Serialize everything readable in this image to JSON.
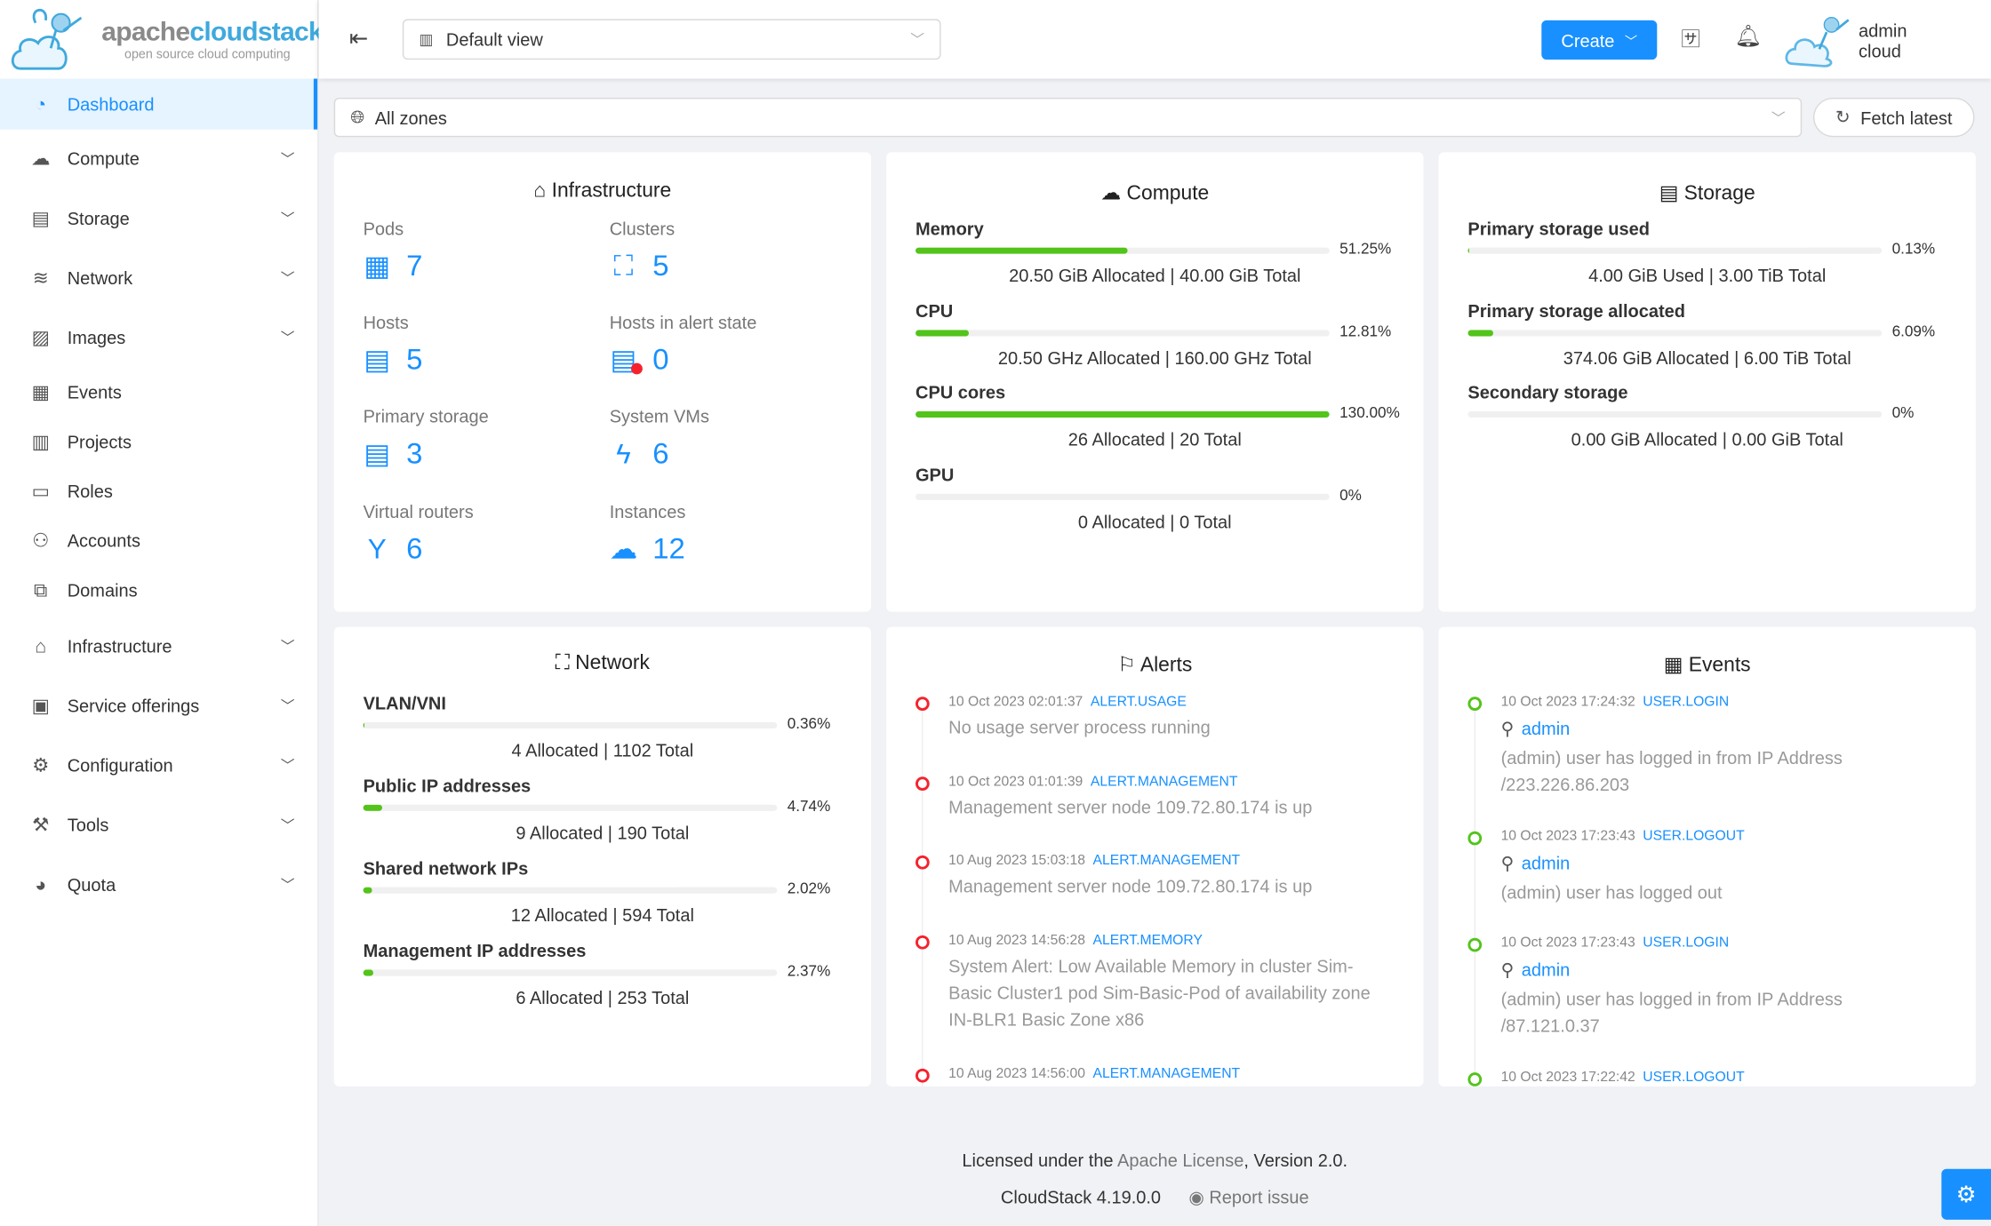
{
  "logo": {
    "text_a": "apache",
    "text_b": "cloudstack",
    "tagline": "open source cloud computing"
  },
  "sidebar": {
    "items": [
      {
        "label": "Dashboard",
        "icon": "dashboard-icon",
        "glyph": "◔",
        "active": true,
        "expandable": false
      },
      {
        "label": "Compute",
        "icon": "cloud-icon",
        "glyph": "☁",
        "expandable": true
      },
      {
        "label": "Storage",
        "icon": "database-icon",
        "glyph": "▤",
        "expandable": true
      },
      {
        "label": "Network",
        "icon": "wifi-icon",
        "glyph": "≋",
        "expandable": true
      },
      {
        "label": "Images",
        "icon": "picture-icon",
        "glyph": "▨",
        "expandable": true
      },
      {
        "label": "Events",
        "icon": "schedule-icon",
        "glyph": "▦",
        "expandable": false
      },
      {
        "label": "Projects",
        "icon": "project-icon",
        "glyph": "▥",
        "expandable": false
      },
      {
        "label": "Roles",
        "icon": "idcard-icon",
        "glyph": "▭",
        "expandable": false
      },
      {
        "label": "Accounts",
        "icon": "team-icon",
        "glyph": "⚇",
        "expandable": false
      },
      {
        "label": "Domains",
        "icon": "block-icon",
        "glyph": "⧉",
        "expandable": false
      },
      {
        "label": "Infrastructure",
        "icon": "bank-icon",
        "glyph": "⌂",
        "expandable": true
      },
      {
        "label": "Service offerings",
        "icon": "shopping-icon",
        "glyph": "▣",
        "expandable": true
      },
      {
        "label": "Configuration",
        "icon": "setting-icon",
        "glyph": "⚙",
        "expandable": true
      },
      {
        "label": "Tools",
        "icon": "tool-icon",
        "glyph": "⚒",
        "expandable": true
      },
      {
        "label": "Quota",
        "icon": "pie-chart-icon",
        "glyph": "◕",
        "expandable": true
      }
    ]
  },
  "header": {
    "view_select": "Default view",
    "create": "Create",
    "user": "admin cloud"
  },
  "toolbar": {
    "zone_select": "All zones",
    "fetch_latest": "Fetch latest"
  },
  "infrastructure": {
    "title": "Infrastructure",
    "stats": [
      {
        "label": "Pods",
        "value": "7",
        "icon": "appstore-icon",
        "glyph": "▦"
      },
      {
        "label": "Clusters",
        "value": "5",
        "icon": "cluster-icon",
        "glyph": "⛶"
      },
      {
        "label": "Hosts",
        "value": "5",
        "icon": "host-icon",
        "glyph": "▤"
      },
      {
        "label": "Hosts in alert state",
        "value": "0",
        "icon": "host-alert-icon",
        "glyph": "▤"
      },
      {
        "label": "Primary storage",
        "value": "3",
        "icon": "database-icon",
        "glyph": "▤"
      },
      {
        "label": "System VMs",
        "value": "6",
        "icon": "thunderbolt-icon",
        "glyph": "ϟ"
      },
      {
        "label": "Virtual routers",
        "value": "6",
        "icon": "fork-icon",
        "glyph": "Y"
      },
      {
        "label": "Instances",
        "value": "12",
        "icon": "cloud-server-icon",
        "glyph": "☁"
      }
    ]
  },
  "compute": {
    "title": "Compute",
    "metrics": [
      {
        "name": "Memory",
        "percent": 51.25,
        "percent_label": "51.25%",
        "detail": "20.50 GiB Allocated | 40.00 GiB Total"
      },
      {
        "name": "CPU",
        "percent": 12.81,
        "percent_label": "12.81%",
        "detail": "20.50 GHz Allocated | 160.00 GHz Total"
      },
      {
        "name": "CPU cores",
        "percent": 130,
        "percent_label": "130.00%",
        "detail": "26 Allocated | 20 Total"
      },
      {
        "name": "GPU",
        "percent": 0,
        "percent_label": "0%",
        "detail": "0 Allocated | 0 Total"
      }
    ]
  },
  "storage": {
    "title": "Storage",
    "metrics": [
      {
        "name": "Primary storage used",
        "percent": 0.13,
        "percent_label": "0.13%",
        "detail": "4.00 GiB Used | 3.00 TiB Total"
      },
      {
        "name": "Primary storage allocated",
        "percent": 6.09,
        "percent_label": "6.09%",
        "detail": "374.06 GiB Allocated | 6.00 TiB Total"
      },
      {
        "name": "Secondary storage",
        "percent": 0,
        "percent_label": "0%",
        "detail": "0.00 GiB Allocated | 0.00 GiB Total"
      }
    ]
  },
  "network": {
    "title": "Network",
    "metrics": [
      {
        "name": "VLAN/VNI",
        "percent": 0.36,
        "percent_label": "0.36%",
        "detail": "4 Allocated | 1102 Total"
      },
      {
        "name": "Public IP addresses",
        "percent": 4.74,
        "percent_label": "4.74%",
        "detail": "9 Allocated | 190 Total"
      },
      {
        "name": "Shared network IPs",
        "percent": 2.02,
        "percent_label": "2.02%",
        "detail": "12 Allocated | 594 Total"
      },
      {
        "name": "Management IP addresses",
        "percent": 2.37,
        "percent_label": "2.37%",
        "detail": "6 Allocated | 253 Total"
      }
    ]
  },
  "alerts": {
    "title": "Alerts",
    "items": [
      {
        "time": "10 Oct 2023 02:01:37",
        "type": "ALERT.USAGE",
        "desc": "No usage server process running"
      },
      {
        "time": "10 Oct 2023 01:01:39",
        "type": "ALERT.MANAGEMENT",
        "desc": "Management server node 109.72.80.174 is up"
      },
      {
        "time": "10 Aug 2023 15:03:18",
        "type": "ALERT.MANAGEMENT",
        "desc": "Management server node 109.72.80.174 is up"
      },
      {
        "time": "10 Aug 2023 14:56:28",
        "type": "ALERT.MEMORY",
        "desc": "System Alert: Low Available Memory in cluster Sim-Basic Cluster1 pod Sim-Basic-Pod of availability zone IN-BLR1 Basic Zone x86"
      },
      {
        "time": "10 Aug 2023 14:56:00",
        "type": "ALERT.MANAGEMENT",
        "desc": ""
      }
    ]
  },
  "events": {
    "title": "Events",
    "items": [
      {
        "time": "10 Oct 2023 17:24:32",
        "type": "USER.LOGIN",
        "user": "admin",
        "desc": "(admin) user has logged in from IP Address /223.226.86.203"
      },
      {
        "time": "10 Oct 2023 17:23:43",
        "type": "USER.LOGOUT",
        "user": "admin",
        "desc": "(admin) user has logged out"
      },
      {
        "time": "10 Oct 2023 17:23:43",
        "type": "USER.LOGIN",
        "user": "admin",
        "desc": "(admin) user has logged in from IP Address /87.121.0.37"
      },
      {
        "time": "10 Oct 2023 17:22:42",
        "type": "USER.LOGOUT",
        "user": "",
        "desc": ""
      }
    ]
  },
  "footer": {
    "license_pre": "Licensed under the ",
    "license_link": "Apache License",
    "license_post": ", Version 2.0.",
    "version": "CloudStack 4.19.0.0",
    "report": "Report issue"
  },
  "colors": {
    "accent": "#1890ff",
    "success": "#52c41a",
    "error": "#f5222d",
    "background": "#f0f2f5"
  }
}
